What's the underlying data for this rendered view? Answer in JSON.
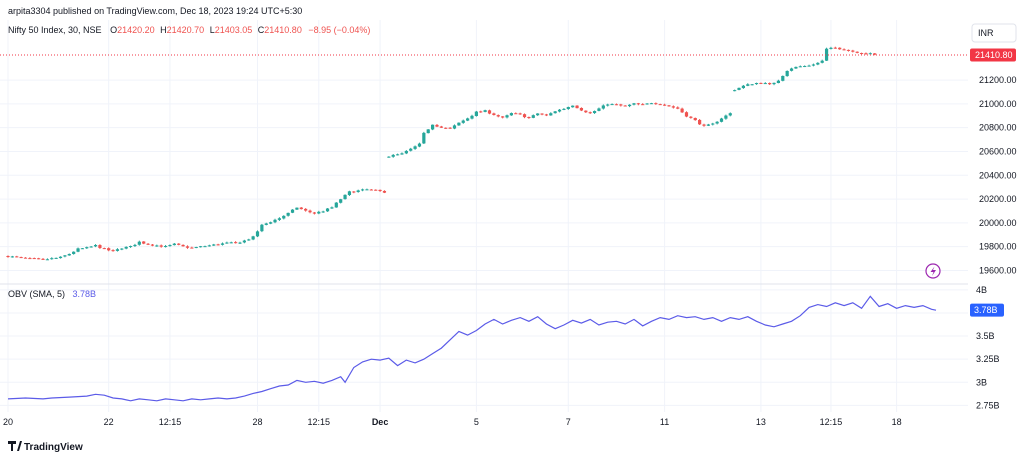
{
  "header": {
    "publish_info": "arpita3304 published on TradingView.com, Dec 18, 2023 19:24 UTC+5:30",
    "symbol": "Nifty 50 Index, 30, NSE",
    "open_label": "O",
    "open_value": "21420.20",
    "high_label": "H",
    "high_value": "21420.70",
    "low_label": "L",
    "low_value": "21403.05",
    "close_label": "C",
    "close_value": "21410.80",
    "change": "−8.95 (−0.04%)"
  },
  "currency_button": "INR",
  "price_badge": "21410.80",
  "obv_header": {
    "name": "OBV (SMA, 5)",
    "value": "3.78B"
  },
  "obv_badge": "3.78B",
  "footer": {
    "brand": "TradingView"
  },
  "colors": {
    "up": "#26a69a",
    "down": "#ef5350",
    "obv_line": "#5b5be8",
    "price_badge_bg": "#f23645",
    "obv_badge_bg": "#2962ff",
    "grid": "#f0f3fa",
    "lightning": "#9c27b0"
  },
  "chart_data": [
    {
      "type": "candlestick",
      "title": "Nifty 50 Index, 30, NSE",
      "y_ticks": [
        19600,
        19800,
        20000,
        20200,
        20400,
        20600,
        20800,
        21000,
        21200
      ],
      "ylim": [
        19520,
        21520
      ],
      "x_ticks": [
        "20",
        "22",
        "12:15",
        "28",
        "12:15",
        "Dec",
        "5",
        "7",
        "11",
        "13",
        "12:15",
        "18"
      ],
      "last_price": 21410.8,
      "close_path": [
        [
          0,
          19720
        ],
        [
          4,
          19700
        ],
        [
          8,
          19690
        ],
        [
          12,
          19710
        ],
        [
          14,
          19740
        ],
        [
          16,
          19780
        ],
        [
          18,
          19790
        ],
        [
          20,
          19810
        ],
        [
          22,
          19780
        ],
        [
          24,
          19760
        ],
        [
          26,
          19790
        ],
        [
          28,
          19800
        ],
        [
          30,
          19840
        ],
        [
          32,
          19820
        ],
        [
          34,
          19810
        ],
        [
          36,
          19800
        ],
        [
          38,
          19820
        ],
        [
          40,
          19800
        ],
        [
          42,
          19790
        ],
        [
          44,
          19800
        ],
        [
          46,
          19810
        ],
        [
          48,
          19820
        ],
        [
          50,
          19830
        ],
        [
          52,
          19830
        ],
        [
          54,
          19850
        ],
        [
          56,
          19880
        ],
        [
          58,
          19980
        ],
        [
          60,
          20010
        ],
        [
          62,
          20040
        ],
        [
          64,
          20080
        ],
        [
          66,
          20130
        ],
        [
          68,
          20100
        ],
        [
          70,
          20080
        ],
        [
          72,
          20100
        ],
        [
          74,
          20130
        ],
        [
          76,
          20200
        ],
        [
          78,
          20260
        ],
        [
          80,
          20270
        ],
        [
          82,
          20280
        ],
        [
          84,
          20270
        ],
        [
          86,
          20260
        ],
        [
          87,
          20560
        ],
        [
          90,
          20580
        ],
        [
          92,
          20620
        ],
        [
          94,
          20660
        ],
        [
          95,
          20750
        ],
        [
          97,
          20830
        ],
        [
          99,
          20800
        ],
        [
          101,
          20790
        ],
        [
          103,
          20840
        ],
        [
          105,
          20880
        ],
        [
          107,
          20930
        ],
        [
          109,
          20940
        ],
        [
          111,
          20910
        ],
        [
          113,
          20880
        ],
        [
          115,
          20920
        ],
        [
          117,
          20910
        ],
        [
          119,
          20880
        ],
        [
          121,
          20920
        ],
        [
          123,
          20900
        ],
        [
          125,
          20940
        ],
        [
          127,
          20960
        ],
        [
          129,
          20990
        ],
        [
          131,
          20950
        ],
        [
          133,
          20920
        ],
        [
          135,
          20960
        ],
        [
          137,
          21000
        ],
        [
          139,
          20990
        ],
        [
          141,
          20980
        ],
        [
          143,
          21000
        ],
        [
          145,
          20990
        ],
        [
          147,
          21010
        ],
        [
          149,
          21000
        ],
        [
          151,
          20980
        ],
        [
          153,
          20960
        ],
        [
          155,
          20900
        ],
        [
          157,
          20860
        ],
        [
          159,
          20810
        ],
        [
          161,
          20830
        ],
        [
          163,
          20880
        ],
        [
          165,
          20920
        ],
        [
          166,
          21120
        ],
        [
          168,
          21150
        ],
        [
          170,
          21170
        ],
        [
          172,
          21180
        ],
        [
          174,
          21160
        ],
        [
          176,
          21200
        ],
        [
          178,
          21280
        ],
        [
          180,
          21310
        ],
        [
          182,
          21320
        ],
        [
          184,
          21330
        ],
        [
          186,
          21360
        ],
        [
          187,
          21460
        ],
        [
          189,
          21470
        ],
        [
          191,
          21460
        ],
        [
          193,
          21440
        ],
        [
          195,
          21430
        ],
        [
          197,
          21420
        ],
        [
          198,
          21410.8
        ]
      ]
    },
    {
      "type": "line",
      "title": "OBV (SMA, 5)",
      "y_ticks": [
        "2.75B",
        "3B",
        "3.25B",
        "3.5B",
        "3.75B",
        "4B"
      ],
      "y_tick_values": [
        2.75,
        3.0,
        3.25,
        3.5,
        3.75,
        4.0
      ],
      "ylim": [
        2.7,
        4.02
      ],
      "last_value": 3.78,
      "series": [
        {
          "values": [
            [
              0,
              2.82
            ],
            [
              4,
              2.83
            ],
            [
              8,
              2.82
            ],
            [
              10,
              2.83
            ],
            [
              14,
              2.84
            ],
            [
              18,
              2.85
            ],
            [
              20,
              2.87
            ],
            [
              22,
              2.86
            ],
            [
              24,
              2.83
            ],
            [
              26,
              2.82
            ],
            [
              28,
              2.8
            ],
            [
              30,
              2.82
            ],
            [
              32,
              2.81
            ],
            [
              34,
              2.8
            ],
            [
              36,
              2.82
            ],
            [
              38,
              2.81
            ],
            [
              40,
              2.8
            ],
            [
              42,
              2.82
            ],
            [
              44,
              2.81
            ],
            [
              46,
              2.82
            ],
            [
              48,
              2.83
            ],
            [
              50,
              2.82
            ],
            [
              52,
              2.83
            ],
            [
              54,
              2.85
            ],
            [
              56,
              2.88
            ],
            [
              58,
              2.9
            ],
            [
              60,
              2.93
            ],
            [
              62,
              2.96
            ],
            [
              64,
              2.97
            ],
            [
              66,
              3.02
            ],
            [
              68,
              3.0
            ],
            [
              70,
              3.01
            ],
            [
              72,
              2.99
            ],
            [
              74,
              3.02
            ],
            [
              76,
              3.06
            ],
            [
              77,
              3.0
            ],
            [
              79,
              3.16
            ],
            [
              81,
              3.22
            ],
            [
              83,
              3.25
            ],
            [
              85,
              3.24
            ],
            [
              87,
              3.26
            ],
            [
              89,
              3.18
            ],
            [
              91,
              3.24
            ],
            [
              93,
              3.21
            ],
            [
              95,
              3.25
            ],
            [
              97,
              3.31
            ],
            [
              99,
              3.37
            ],
            [
              101,
              3.46
            ],
            [
              103,
              3.55
            ],
            [
              105,
              3.51
            ],
            [
              107,
              3.56
            ],
            [
              109,
              3.63
            ],
            [
              111,
              3.68
            ],
            [
              113,
              3.63
            ],
            [
              115,
              3.67
            ],
            [
              117,
              3.7
            ],
            [
              119,
              3.66
            ],
            [
              121,
              3.71
            ],
            [
              123,
              3.63
            ],
            [
              125,
              3.58
            ],
            [
              127,
              3.62
            ],
            [
              129,
              3.67
            ],
            [
              131,
              3.64
            ],
            [
              133,
              3.68
            ],
            [
              135,
              3.62
            ],
            [
              137,
              3.65
            ],
            [
              139,
              3.66
            ],
            [
              141,
              3.63
            ],
            [
              143,
              3.68
            ],
            [
              145,
              3.61
            ],
            [
              147,
              3.66
            ],
            [
              149,
              3.7
            ],
            [
              151,
              3.68
            ],
            [
              153,
              3.72
            ],
            [
              155,
              3.7
            ],
            [
              157,
              3.71
            ],
            [
              159,
              3.68
            ],
            [
              161,
              3.7
            ],
            [
              163,
              3.66
            ],
            [
              165,
              3.7
            ],
            [
              167,
              3.68
            ],
            [
              169,
              3.71
            ],
            [
              171,
              3.66
            ],
            [
              173,
              3.62
            ],
            [
              175,
              3.6
            ],
            [
              177,
              3.63
            ],
            [
              179,
              3.66
            ],
            [
              181,
              3.72
            ],
            [
              183,
              3.81
            ],
            [
              185,
              3.84
            ],
            [
              187,
              3.82
            ],
            [
              189,
              3.86
            ],
            [
              191,
              3.83
            ],
            [
              193,
              3.86
            ],
            [
              195,
              3.8
            ],
            [
              197,
              3.93
            ],
            [
              199,
              3.82
            ],
            [
              201,
              3.85
            ],
            [
              203,
              3.8
            ],
            [
              205,
              3.83
            ],
            [
              207,
              3.81
            ],
            [
              209,
              3.83
            ],
            [
              211,
              3.79
            ],
            [
              212,
              3.78
            ]
          ]
        }
      ]
    }
  ]
}
